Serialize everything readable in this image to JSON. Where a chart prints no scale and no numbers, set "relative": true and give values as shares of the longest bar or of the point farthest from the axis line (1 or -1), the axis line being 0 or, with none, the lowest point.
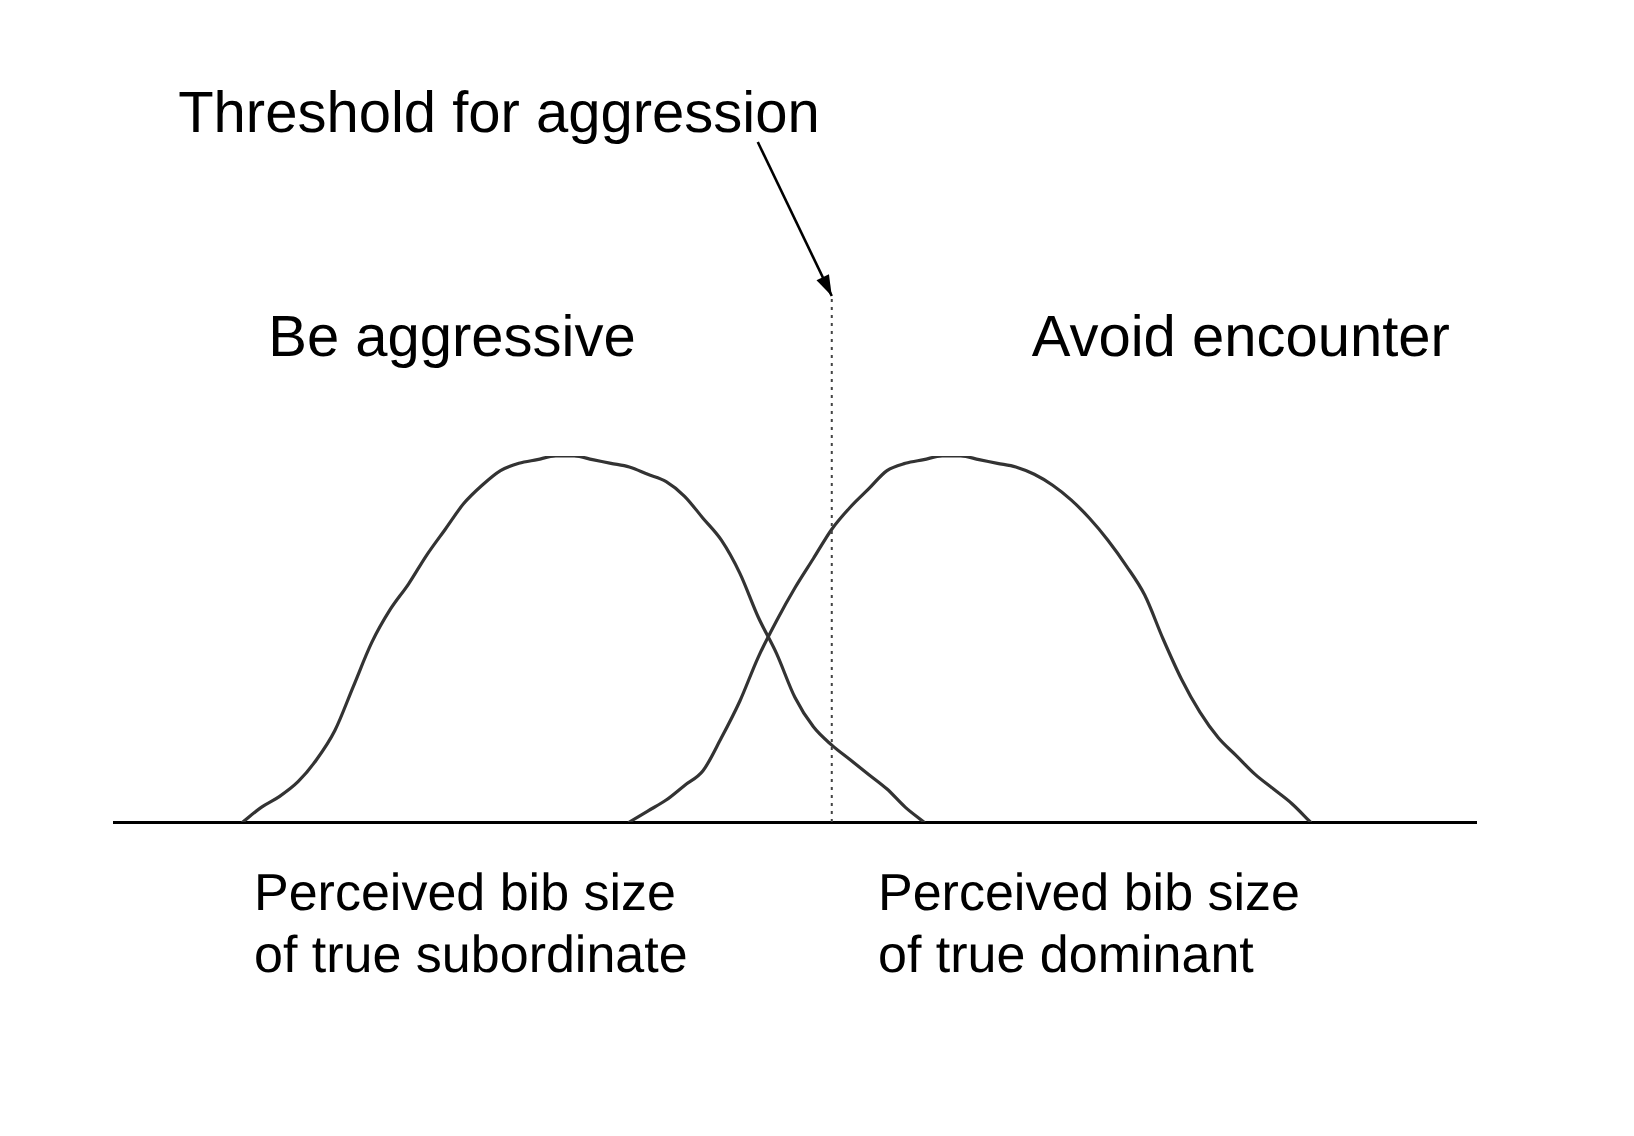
{
  "chart_data": {
    "type": "line",
    "relative": true,
    "categories": [
      null,
      null,
      null,
      null,
      null,
      null,
      null,
      null,
      null,
      null,
      null,
      null,
      null,
      null,
      null,
      null,
      null,
      null,
      null,
      null,
      null,
      null,
      null,
      null,
      null,
      null,
      null,
      null,
      null,
      null,
      null,
      null,
      null,
      null,
      null,
      null,
      null,
      null,
      null,
      null,
      null,
      null,
      null,
      null,
      null,
      null,
      null,
      null,
      null,
      null,
      null,
      null,
      null,
      null,
      null,
      null,
      null,
      null,
      null,
      null,
      null,
      null,
      null,
      null,
      null,
      null,
      null,
      null,
      null,
      null,
      null,
      null,
      null,
      null,
      null
    ],
    "series": [
      {
        "name": "Perceived bib size of true subordinate",
        "color": "#333333",
        "values": [
          null,
          null,
          null,
          null,
          null,
          null,
          null,
          0,
          0.04,
          0.07,
          0.11,
          0.17,
          0.25,
          0.37,
          0.49,
          0.58,
          0.65,
          0.73,
          0.8,
          0.87,
          0.92,
          0.96,
          0.98,
          0.99,
          1,
          1,
          0.99,
          0.98,
          0.97,
          0.95,
          0.93,
          0.89,
          0.83,
          0.77,
          0.68,
          0.56,
          0.46,
          0.34,
          0.26,
          0.21,
          0.17,
          0.13,
          0.09,
          0.04,
          0,
          null,
          null,
          null,
          null,
          null,
          null,
          null,
          null,
          null,
          null,
          null,
          null,
          null,
          null,
          null,
          null,
          null,
          null,
          null,
          null,
          null,
          null,
          null,
          null,
          null,
          null,
          null,
          null,
          null,
          null
        ]
      },
      {
        "name": "Perceived bib size of true dominant",
        "color": "#333333",
        "values": [
          null,
          null,
          null,
          null,
          null,
          null,
          null,
          null,
          null,
          null,
          null,
          null,
          null,
          null,
          null,
          null,
          null,
          null,
          null,
          null,
          null,
          null,
          null,
          null,
          null,
          null,
          null,
          null,
          0,
          0.03,
          0.06,
          0.1,
          0.14,
          0.23,
          0.33,
          0.45,
          0.55,
          0.64,
          0.72,
          0.8,
          0.86,
          0.91,
          0.96,
          0.98,
          0.99,
          1,
          1,
          0.99,
          0.98,
          0.97,
          0.95,
          0.92,
          0.88,
          0.83,
          0.77,
          0.7,
          0.62,
          0.5,
          0.39,
          0.3,
          0.23,
          0.18,
          0.13,
          0.09,
          0.05,
          0,
          null,
          null,
          null,
          null,
          null,
          null,
          null,
          null,
          null
        ]
      }
    ],
    "annotations": [
      "Threshold for aggression",
      "Be aggressive",
      "Avoid encounter"
    ]
  }
}
